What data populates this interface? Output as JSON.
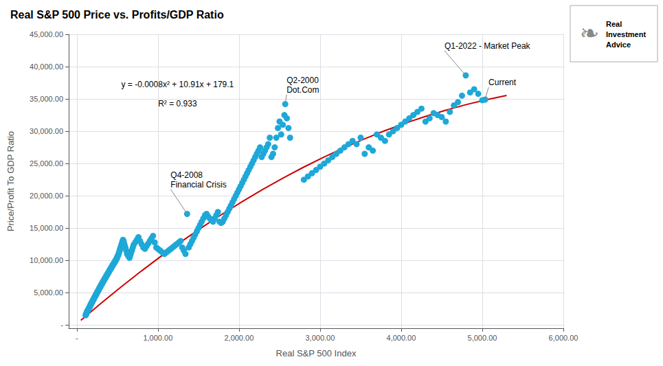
{
  "chart_data": {
    "type": "scatter",
    "title": "Real S&P 500 Price vs. Profits/GDP Ratio",
    "xlabel": "Real S&P 500 Index",
    "ylabel": "Price/Profit To GDP Ratio",
    "equation": [
      "y = -0.0008x² + 10.91x + 179.1",
      "R² = 0.933"
    ],
    "logo": [
      "❧",
      "Real\nInvestment\nAdvice"
    ],
    "annotations": [
      {
        "text": "Q1-2022 - Market Peak",
        "x": 4796,
        "y": 38650
      },
      {
        "text": "Current",
        "x": 5035,
        "y": 34900
      },
      {
        "text": "Q2-2000\nDot.Com",
        "x": 2570,
        "y": 34200
      },
      {
        "text": "Q4-2008\nFinancial Crisis",
        "x": 1360,
        "y": 17200
      }
    ],
    "xlim": [
      -100,
      6000
    ],
    "ylim": [
      -500,
      45000
    ],
    "xticks": [
      {
        "value": 0,
        "label": "-"
      },
      {
        "value": 1000,
        "label": "1,000.00"
      },
      {
        "value": 2000,
        "label": "2,000.00"
      },
      {
        "value": 3000,
        "label": "3,000.00"
      },
      {
        "value": 4000,
        "label": "4,000.00"
      },
      {
        "value": 5000,
        "label": "5,000.00"
      },
      {
        "value": 6000,
        "label": "6,000.00"
      }
    ],
    "yticks": [
      {
        "value": 0,
        "label": "-"
      },
      {
        "value": 5000,
        "label": "5,000.00"
      },
      {
        "value": 10000,
        "label": "10,000.00"
      },
      {
        "value": 15000,
        "label": "15,000.00"
      },
      {
        "value": 20000,
        "label": "20,000.00"
      },
      {
        "value": 25000,
        "label": "25,000.00"
      },
      {
        "value": 30000,
        "label": "30,000.00"
      },
      {
        "value": 35000,
        "label": "35,000.00"
      },
      {
        "value": 40000,
        "label": "40,000.00"
      },
      {
        "value": 45000,
        "label": "45,000.00"
      }
    ],
    "grid": true,
    "series": [
      {
        "type": "scatter",
        "color": "#1EA8D8",
        "x": [
          108,
          112,
          115,
          118,
          122,
          125,
          128,
          132,
          135,
          138,
          142,
          145,
          148,
          152,
          155,
          158,
          162,
          165,
          168,
          172,
          175,
          178,
          182,
          185,
          188,
          192,
          195,
          198,
          202,
          205,
          208,
          212,
          215,
          218,
          222,
          225,
          228,
          232,
          235,
          238,
          242,
          245,
          248,
          252,
          255,
          258,
          262,
          265,
          268,
          272,
          275,
          278,
          282,
          285,
          288,
          292,
          295,
          298,
          302,
          305,
          308,
          312,
          315,
          318,
          322,
          325,
          328,
          332,
          335,
          338,
          342,
          345,
          348,
          352,
          355,
          358,
          362,
          365,
          368,
          372,
          375,
          378,
          382,
          385,
          388,
          392,
          395,
          398,
          402,
          405,
          408,
          412,
          415,
          418,
          422,
          425,
          428,
          432,
          435,
          438,
          442,
          445,
          448,
          452,
          455,
          458,
          462,
          465,
          468,
          472,
          475,
          478,
          482,
          485,
          488,
          492,
          495,
          498,
          502,
          505,
          510,
          515,
          520,
          525,
          530,
          535,
          540,
          545,
          550,
          555,
          560,
          565,
          570,
          575,
          580,
          585,
          590,
          595,
          600,
          610,
          620,
          630,
          640,
          650,
          660,
          670,
          680,
          690,
          700,
          720,
          740,
          760,
          780,
          800,
          820,
          840,
          860,
          880,
          900,
          920,
          940,
          960,
          980,
          1000,
          1020,
          1040,
          1060,
          1080,
          1100,
          1120,
          1140,
          1160,
          1180,
          1200,
          1220,
          1240,
          1260,
          1280,
          1300,
          1320,
          1340,
          1360,
          1380,
          1400,
          1420,
          1440,
          1460,
          1480,
          1500,
          1520,
          1540,
          1560,
          1580,
          1600,
          1620,
          1640,
          1660,
          1680,
          1700,
          1720,
          1740,
          1760,
          1780,
          1800,
          1820,
          1840,
          1860,
          1880,
          1900,
          1920,
          1940,
          1960,
          1980,
          2000,
          2020,
          2040,
          2060,
          2080,
          2100,
          2120,
          2140,
          2160,
          2180,
          2200,
          2220,
          2240,
          2260,
          2280,
          2300,
          2320,
          2340,
          2360,
          2380,
          2400,
          2420,
          2440,
          2460,
          2480,
          2500,
          2520,
          2540,
          2560,
          2570,
          2590,
          2610,
          2630,
          2800,
          2850,
          2900,
          2950,
          3000,
          3050,
          3100,
          3150,
          3200,
          3250,
          3300,
          3350,
          3400,
          3450,
          3500,
          3550,
          3600,
          3650,
          3700,
          3750,
          3800,
          3850,
          3900,
          3950,
          4000,
          4050,
          4100,
          4150,
          4200,
          4250,
          4300,
          4350,
          4400,
          4450,
          4500,
          4550,
          4600,
          4650,
          4700,
          4750,
          4796,
          4850,
          4900,
          4950,
          5000,
          5035
        ],
        "values": [
          1500,
          1600,
          1700,
          1800,
          1900,
          2000,
          2100,
          2200,
          2200,
          2300,
          2400,
          2500,
          2600,
          2600,
          2700,
          2800,
          2900,
          3000,
          3100,
          3200,
          3200,
          3300,
          3400,
          3500,
          3600,
          3600,
          3700,
          3800,
          3900,
          4000,
          4000,
          4100,
          4200,
          4300,
          4400,
          4400,
          4500,
          4600,
          4700,
          4700,
          4800,
          4900,
          5000,
          5100,
          5100,
          5200,
          5300,
          5400,
          5400,
          5500,
          5600,
          5700,
          5800,
          5800,
          5900,
          6000,
          6100,
          6100,
          6200,
          6300,
          6400,
          6400,
          6500,
          6600,
          6700,
          6700,
          6800,
          6900,
          7000,
          7000,
          7100,
          7200,
          7200,
          7300,
          7400,
          7500,
          7500,
          7600,
          7700,
          7700,
          7800,
          7900,
          8000,
          8000,
          8100,
          8200,
          8200,
          8300,
          8400,
          8500,
          8500,
          8600,
          8700,
          8700,
          8800,
          8900,
          9000,
          9000,
          9100,
          9200,
          9200,
          9300,
          9400,
          9400,
          9500,
          9600,
          9600,
          9700,
          9800,
          9800,
          9900,
          10000,
          10100,
          10100,
          10200,
          10300,
          10400,
          10500,
          10600,
          10700,
          10800,
          11000,
          11200,
          11400,
          11600,
          11800,
          12000,
          12200,
          12400,
          12600,
          12800,
          13000,
          13200,
          13000,
          12800,
          12500,
          12300,
          12100,
          11900,
          11500,
          11000,
          10800,
          10600,
          10400,
          10800,
          11200,
          11600,
          12000,
          12400,
          12800,
          13200,
          13600,
          13000,
          12500,
          12000,
          11800,
          12200,
          12600,
          13000,
          13400,
          13800,
          12800,
          12000,
          11800,
          11600,
          11400,
          11200,
          11000,
          11200,
          11400,
          11600,
          11800,
          12000,
          12200,
          12400,
          12600,
          12800,
          13000,
          12000,
          11500,
          11000,
          17200,
          12000,
          12500,
          13000,
          13500,
          14000,
          14500,
          15000,
          15500,
          16000,
          16500,
          17000,
          17200,
          16800,
          16500,
          16200,
          16000,
          16500,
          17000,
          17500,
          16000,
          15800,
          16000,
          16500,
          17000,
          17500,
          18000,
          18500,
          19000,
          19500,
          20000,
          20500,
          21000,
          21500,
          22000,
          22500,
          23000,
          23500,
          24000,
          24500,
          25000,
          25500,
          26000,
          26500,
          27000,
          27500,
          26000,
          26500,
          27000,
          27500,
          28000,
          29000,
          26000,
          26500,
          27500,
          29000,
          30500,
          31500,
          29500,
          31000,
          32500,
          34200,
          32000,
          30500,
          29000,
          22500,
          23000,
          23500,
          24000,
          24500,
          25000,
          25500,
          26000,
          26500,
          27000,
          27500,
          28000,
          28500,
          28000,
          29000,
          26500,
          27500,
          27000,
          29500,
          29000,
          28500,
          29500,
          30000,
          30500,
          31000,
          31500,
          32000,
          32500,
          33000,
          33500,
          31500,
          32000,
          32800,
          32500,
          32200,
          31500,
          33000,
          34000,
          34500,
          35500,
          38650,
          36000,
          36500,
          35800,
          34800,
          34900
        ]
      },
      {
        "type": "line",
        "color": "#CC0000",
        "x": [
          50,
          300,
          550,
          800,
          1050,
          1300,
          1550,
          1800,
          2050,
          2300,
          2550,
          2800,
          3050,
          3300,
          3550,
          3800,
          4050,
          4300,
          4550,
          4800,
          5050,
          5300
        ],
        "values": [
          722.6,
          3380.1,
          5937.6,
          8395.1,
          10752.6,
          13010.1,
          15167.6,
          17225.1,
          19182.6,
          21040.1,
          22797.6,
          24455.1,
          26012.6,
          27470.1,
          28827.6,
          30085.1,
          31242.6,
          32300.1,
          33257.6,
          34115.1,
          34872.6,
          35530.1
        ]
      }
    ]
  }
}
